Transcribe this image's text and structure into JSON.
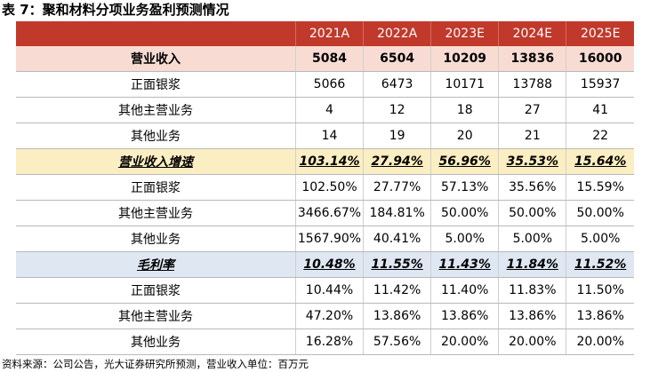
{
  "title": "表 7：聚和材料分项业务盈利预测情况",
  "header": [
    "",
    "2021A",
    "2022A",
    "2023E",
    "2024E",
    "2025E"
  ],
  "rows": [
    {
      "type": "revenue",
      "cells": [
        "营业收入",
        "5084",
        "6504",
        "10209",
        "13836",
        "16000"
      ]
    },
    {
      "type": "normal",
      "cells": [
        "正面银浆",
        "5066",
        "6473",
        "10171",
        "13788",
        "15937"
      ]
    },
    {
      "type": "normal",
      "cells": [
        "其他主营业务",
        "4",
        "12",
        "18",
        "27",
        "41"
      ]
    },
    {
      "type": "normal",
      "cells": [
        "其他业务",
        "14",
        "19",
        "20",
        "21",
        "22"
      ]
    },
    {
      "type": "growth",
      "cells": [
        "营业收入增速",
        "103.14%",
        "27.94%",
        "56.96%",
        "35.53%",
        "15.64%"
      ]
    },
    {
      "type": "normal",
      "cells": [
        "正面银浆",
        "102.50%",
        "27.77%",
        "57.13%",
        "35.56%",
        "15.59%"
      ]
    },
    {
      "type": "normal",
      "cells": [
        "其他主营业务",
        "3466.67%",
        "184.81%",
        "50.00%",
        "50.00%",
        "50.00%"
      ]
    },
    {
      "type": "normal",
      "cells": [
        "其他业务",
        "1567.90%",
        "40.41%",
        "5.00%",
        "5.00%",
        "5.00%"
      ]
    },
    {
      "type": "margin",
      "cells": [
        "毛利率",
        "10.48%",
        "11.55%",
        "11.43%",
        "11.84%",
        "11.52%"
      ]
    },
    {
      "type": "normal",
      "cells": [
        "正面银浆",
        "10.44%",
        "11.42%",
        "11.40%",
        "11.83%",
        "11.50%"
      ]
    },
    {
      "type": "normal",
      "cells": [
        "其他主营业务",
        "47.20%",
        "13.86%",
        "13.86%",
        "13.86%",
        "13.86%"
      ]
    },
    {
      "type": "normal",
      "cells": [
        "其他业务",
        "16.28%",
        "57.56%",
        "20.00%",
        "20.00%",
        "20.00%"
      ]
    }
  ],
  "source": "资料来源：公司公告，光大证券研究所预测，营业收入单位：百万元"
}
